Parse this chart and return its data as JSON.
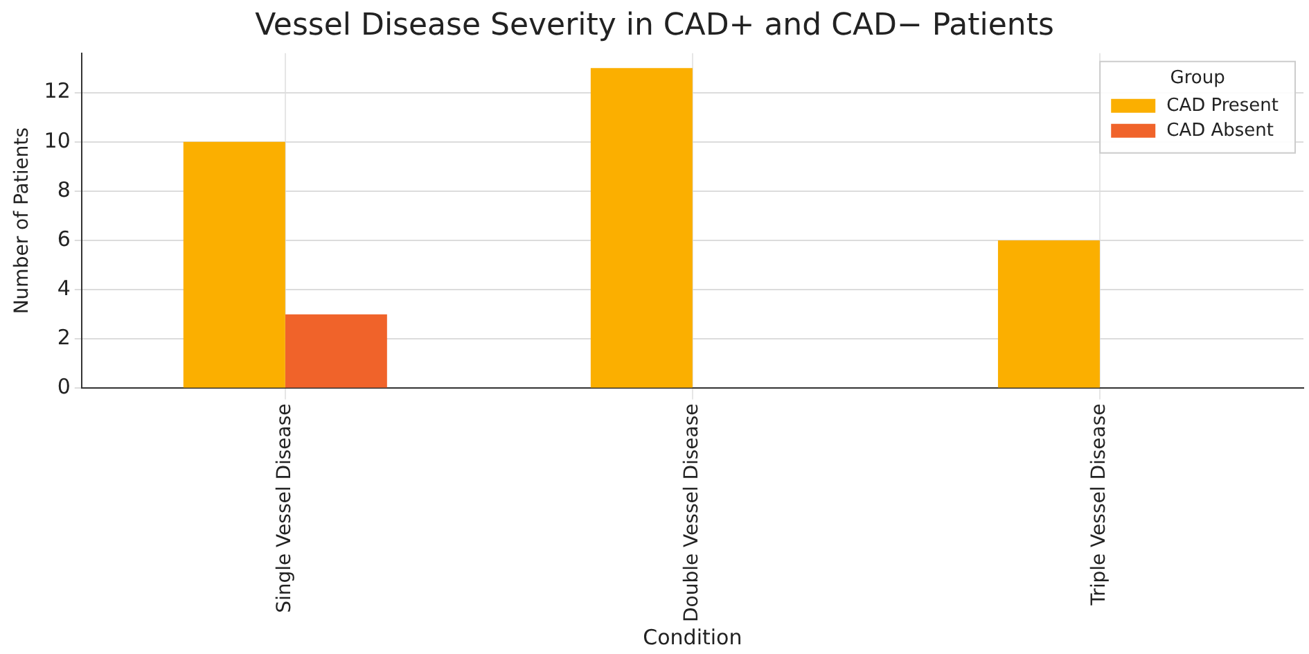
{
  "chart_data": {
    "type": "bar",
    "title": "Vessel Disease Severity in CAD+ and CAD− Patients",
    "xlabel": "Condition",
    "ylabel": "Number of Patients",
    "legend_title": "Group",
    "categories": [
      "Single Vessel Disease",
      "Double Vessel Disease",
      "Triple Vessel Disease"
    ],
    "series": [
      {
        "name": "CAD Present",
        "color": "#fbaf00",
        "values": [
          10,
          13,
          6
        ]
      },
      {
        "name": "CAD Absent",
        "color": "#f0632a",
        "values": [
          3,
          0,
          0
        ]
      }
    ],
    "ylim": [
      0,
      13.6
    ],
    "yticks": [
      0,
      2,
      4,
      6,
      8,
      10,
      12
    ],
    "grid": true,
    "legend": "top right"
  }
}
